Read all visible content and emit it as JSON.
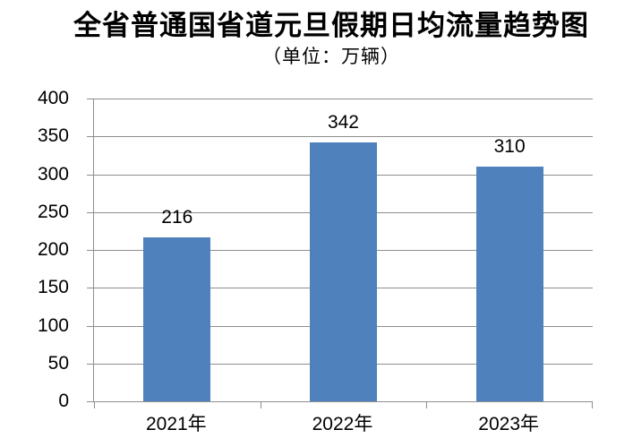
{
  "title": "全省普通国省道元旦假期日均流量趋势图",
  "subtitle": "（单位：万辆）",
  "colors": {
    "bar": "#4F81BD",
    "grid": "#8E8E8E",
    "axis": "#8E8E8E",
    "text": "#000000",
    "background": "#FFFFFF"
  },
  "chart_data": {
    "type": "bar",
    "categories": [
      "2021年",
      "2022年",
      "2023年"
    ],
    "values": [
      216,
      342,
      310
    ],
    "data_labels": [
      "216",
      "342",
      "310"
    ],
    "title": "全省普通国省道元旦假期日均流量趋势图",
    "subtitle": "（单位：万辆）",
    "xlabel": "",
    "ylabel": "",
    "ylim": [
      0,
      400
    ],
    "ytick_step": 50,
    "yticks": [
      0,
      50,
      100,
      150,
      200,
      250,
      300,
      350,
      400
    ],
    "grid": true,
    "legend": false
  }
}
